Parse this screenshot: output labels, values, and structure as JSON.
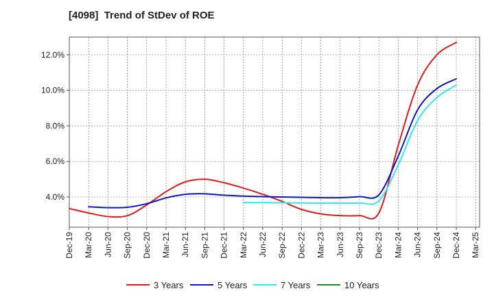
{
  "chart_data": {
    "type": "line",
    "title": "[4098]  Trend of StDev of ROE",
    "xlabel": "",
    "ylabel": "",
    "x_ticks": [
      "Dec-19",
      "Mar-20",
      "Jun-20",
      "Sep-20",
      "Dec-20",
      "Mar-21",
      "Jun-21",
      "Sep-21",
      "Dec-21",
      "Mar-22",
      "Jun-22",
      "Sep-22",
      "Dec-22",
      "Mar-23",
      "Jun-23",
      "Sep-23",
      "Dec-23",
      "Mar-24",
      "Jun-24",
      "Sep-24",
      "Dec-24",
      "Mar-25"
    ],
    "y_ticks": [
      "4.0%",
      "6.0%",
      "8.0%",
      "10.0%",
      "12.0%"
    ],
    "y_tick_values": [
      4,
      6,
      8,
      10,
      12
    ],
    "ylim": [
      2.3,
      13.0
    ],
    "grid": true,
    "legend_position": "bottom",
    "series": [
      {
        "name": "3 Years",
        "color": "#e31a1c",
        "points": [
          [
            "Dec-19",
            3.35
          ],
          [
            "Mar-20",
            3.1
          ],
          [
            "Jun-20",
            2.9
          ],
          [
            "Sep-20",
            2.95
          ],
          [
            "Dec-20",
            3.55
          ],
          [
            "Mar-21",
            4.3
          ],
          [
            "Jun-21",
            4.85
          ],
          [
            "Sep-21",
            5.0
          ],
          [
            "Dec-21",
            4.8
          ],
          [
            "Mar-22",
            4.5
          ],
          [
            "Jun-22",
            4.15
          ],
          [
            "Sep-22",
            3.75
          ],
          [
            "Dec-22",
            3.3
          ],
          [
            "Mar-23",
            3.05
          ],
          [
            "Jun-23",
            2.95
          ],
          [
            "Sep-23",
            2.95
          ],
          [
            "Dec-23",
            3.1
          ],
          [
            "Mar-24",
            6.9
          ],
          [
            "Jun-24",
            10.3
          ],
          [
            "Sep-24",
            12.0
          ],
          [
            "Dec-24",
            12.7
          ]
        ]
      },
      {
        "name": "5 Years",
        "color": "#0a14c8",
        "points": [
          [
            "Mar-20",
            3.45
          ],
          [
            "Jun-20",
            3.4
          ],
          [
            "Sep-20",
            3.42
          ],
          [
            "Dec-20",
            3.62
          ],
          [
            "Mar-21",
            3.95
          ],
          [
            "Jun-21",
            4.15
          ],
          [
            "Sep-21",
            4.18
          ],
          [
            "Dec-21",
            4.1
          ],
          [
            "Mar-22",
            4.05
          ],
          [
            "Jun-22",
            4.02
          ],
          [
            "Sep-22",
            4.0
          ],
          [
            "Dec-22",
            3.98
          ],
          [
            "Mar-23",
            3.96
          ],
          [
            "Jun-23",
            3.96
          ],
          [
            "Sep-23",
            4.02
          ],
          [
            "Dec-23",
            4.12
          ],
          [
            "Mar-24",
            6.3
          ],
          [
            "Jun-24",
            8.9
          ],
          [
            "Sep-24",
            10.1
          ],
          [
            "Dec-24",
            10.65
          ]
        ]
      },
      {
        "name": "7 Years",
        "color": "#33e6f0",
        "points": [
          [
            "Mar-22",
            3.68
          ],
          [
            "Jun-22",
            3.68
          ],
          [
            "Sep-22",
            3.67
          ],
          [
            "Dec-22",
            3.66
          ],
          [
            "Mar-23",
            3.65
          ],
          [
            "Jun-23",
            3.65
          ],
          [
            "Sep-23",
            3.66
          ],
          [
            "Dec-23",
            3.78
          ],
          [
            "Mar-24",
            5.8
          ],
          [
            "Jun-24",
            8.3
          ],
          [
            "Sep-24",
            9.6
          ],
          [
            "Dec-24",
            10.3
          ]
        ]
      },
      {
        "name": "10 Years",
        "color": "#1a8a1a",
        "points": []
      }
    ]
  }
}
